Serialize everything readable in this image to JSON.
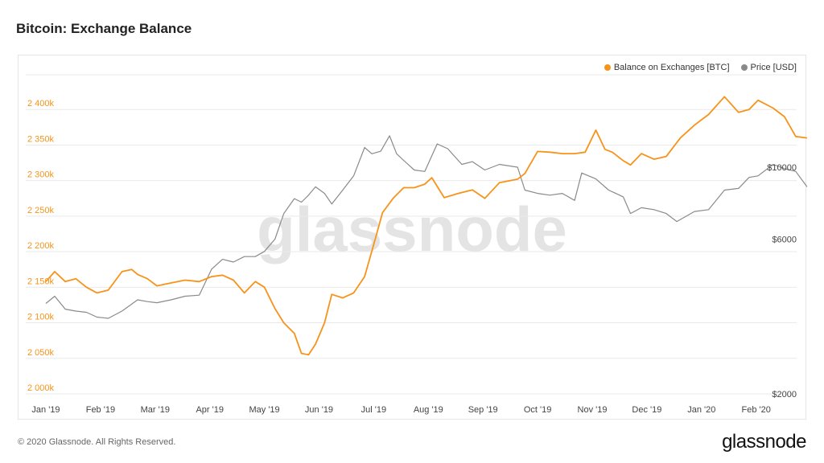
{
  "title": "Bitcoin: Exchange Balance",
  "footer": {
    "copyright": "© 2020 Glassnode. All Rights Reserved.",
    "logo": "glassnode"
  },
  "watermark": "glassnode",
  "colors": {
    "balance": "#f7931a",
    "price": "#8a8a8a",
    "grid": "#e9e9e9",
    "watermark": "#e4e4e4"
  },
  "chart_data": {
    "type": "line",
    "title": "Bitcoin: Exchange Balance",
    "x_ticks": [
      "Jan '19",
      "Feb '19",
      "Mar '19",
      "Apr '19",
      "May '19",
      "Jun '19",
      "Jul '19",
      "Aug '19",
      "Sep '19",
      "Oct '19",
      "Nov '19",
      "Dec '19",
      "Jan '20",
      "Feb '20"
    ],
    "x_range": [
      "2019-01-01",
      "2020-02-28"
    ],
    "y_left": {
      "ticks": [
        "2 000k",
        "2 050k",
        "2 100k",
        "2 150k",
        "2 200k",
        "2 250k",
        "2 300k",
        "2 350k",
        "2 400k"
      ],
      "range": [
        2000000,
        2450000
      ]
    },
    "y_right": {
      "ticks": [
        "$2000",
        "$6000",
        "$10000"
      ],
      "scale": "log"
    },
    "grid": true,
    "legend_position": "top-right",
    "series": [
      {
        "name": "Balance on Exchanges [BTC]",
        "axis": "left",
        "x": [
          "2019-01-01",
          "2019-01-06",
          "2019-01-12",
          "2019-01-18",
          "2019-01-24",
          "2019-01-30",
          "2019-02-05",
          "2019-02-12",
          "2019-02-17",
          "2019-02-20",
          "2019-02-25",
          "2019-03-02",
          "2019-03-10",
          "2019-03-18",
          "2019-03-26",
          "2019-04-02",
          "2019-04-08",
          "2019-04-14",
          "2019-04-20",
          "2019-04-26",
          "2019-05-01",
          "2019-05-07",
          "2019-05-12",
          "2019-05-18",
          "2019-05-22",
          "2019-05-26",
          "2019-05-30",
          "2019-06-04",
          "2019-06-08",
          "2019-06-14",
          "2019-06-20",
          "2019-06-26",
          "2019-07-01",
          "2019-07-06",
          "2019-07-12",
          "2019-07-18",
          "2019-07-24",
          "2019-07-30",
          "2019-08-03",
          "2019-08-10",
          "2019-08-18",
          "2019-08-26",
          "2019-09-02",
          "2019-09-10",
          "2019-09-20",
          "2019-09-24",
          "2019-10-01",
          "2019-10-08",
          "2019-10-15",
          "2019-10-22",
          "2019-10-28",
          "2019-11-03",
          "2019-11-08",
          "2019-11-12",
          "2019-11-18",
          "2019-11-22",
          "2019-11-28",
          "2019-12-05",
          "2019-12-12",
          "2019-12-20",
          "2019-12-28",
          "2020-01-05",
          "2020-01-14",
          "2020-01-22",
          "2020-01-28",
          "2020-02-02",
          "2020-02-10",
          "2020-02-16",
          "2020-02-22",
          "2020-02-28"
        ],
        "values": [
          2158000,
          2172000,
          2158000,
          2162000,
          2150000,
          2142000,
          2146000,
          2172000,
          2175000,
          2168000,
          2162000,
          2152000,
          2156000,
          2160000,
          2158000,
          2165000,
          2167000,
          2160000,
          2142000,
          2158000,
          2150000,
          2120000,
          2100000,
          2085000,
          2057000,
          2055000,
          2070000,
          2100000,
          2140000,
          2135000,
          2142000,
          2165000,
          2210000,
          2255000,
          2275000,
          2290000,
          2290000,
          2295000,
          2304000,
          2276000,
          2282000,
          2287000,
          2275000,
          2297000,
          2302000,
          2310000,
          2341000,
          2340000,
          2338000,
          2338000,
          2340000,
          2371000,
          2344000,
          2340000,
          2328000,
          2322000,
          2338000,
          2330000,
          2334000,
          2360000,
          2378000,
          2393000,
          2418000,
          2396000,
          2400000,
          2413000,
          2402000,
          2390000,
          2362000,
          2360000
        ]
      },
      {
        "name": "Price [USD]",
        "axis": "right",
        "x": [
          "2019-01-01",
          "2019-01-06",
          "2019-01-12",
          "2019-01-18",
          "2019-01-24",
          "2019-01-30",
          "2019-02-05",
          "2019-02-12",
          "2019-02-20",
          "2019-02-25",
          "2019-03-02",
          "2019-03-10",
          "2019-03-18",
          "2019-03-26",
          "2019-04-02",
          "2019-04-08",
          "2019-04-14",
          "2019-04-20",
          "2019-04-26",
          "2019-05-01",
          "2019-05-07",
          "2019-05-12",
          "2019-05-18",
          "2019-05-22",
          "2019-05-26",
          "2019-05-30",
          "2019-06-04",
          "2019-06-08",
          "2019-06-14",
          "2019-06-20",
          "2019-06-26",
          "2019-06-30",
          "2019-07-05",
          "2019-07-10",
          "2019-07-14",
          "2019-07-18",
          "2019-07-24",
          "2019-07-30",
          "2019-08-06",
          "2019-08-12",
          "2019-08-20",
          "2019-08-26",
          "2019-09-02",
          "2019-09-10",
          "2019-09-20",
          "2019-09-24",
          "2019-10-01",
          "2019-10-08",
          "2019-10-15",
          "2019-10-22",
          "2019-10-26",
          "2019-11-03",
          "2019-11-10",
          "2019-11-18",
          "2019-11-22",
          "2019-11-28",
          "2019-12-05",
          "2019-12-12",
          "2019-12-18",
          "2019-12-28",
          "2020-01-05",
          "2020-01-14",
          "2020-01-22",
          "2020-01-28",
          "2020-02-02",
          "2020-02-10",
          "2020-02-16",
          "2020-02-22",
          "2020-02-28"
        ],
        "values": [
          3800,
          4000,
          3650,
          3600,
          3570,
          3450,
          3420,
          3600,
          3900,
          3850,
          3820,
          3900,
          4000,
          4030,
          4850,
          5200,
          5100,
          5300,
          5300,
          5500,
          6000,
          7200,
          8000,
          7800,
          8200,
          8700,
          8300,
          7700,
          8500,
          9400,
          11500,
          11000,
          11200,
          12500,
          11000,
          10500,
          9800,
          9700,
          11800,
          11400,
          10200,
          10400,
          9800,
          10200,
          10000,
          8500,
          8300,
          8200,
          8300,
          7900,
          9600,
          9200,
          8500,
          8100,
          7200,
          7500,
          7400,
          7200,
          6800,
          7300,
          7400,
          8500,
          8600,
          9300,
          9400,
          10200,
          9900,
          9700,
          8700
        ]
      }
    ]
  }
}
